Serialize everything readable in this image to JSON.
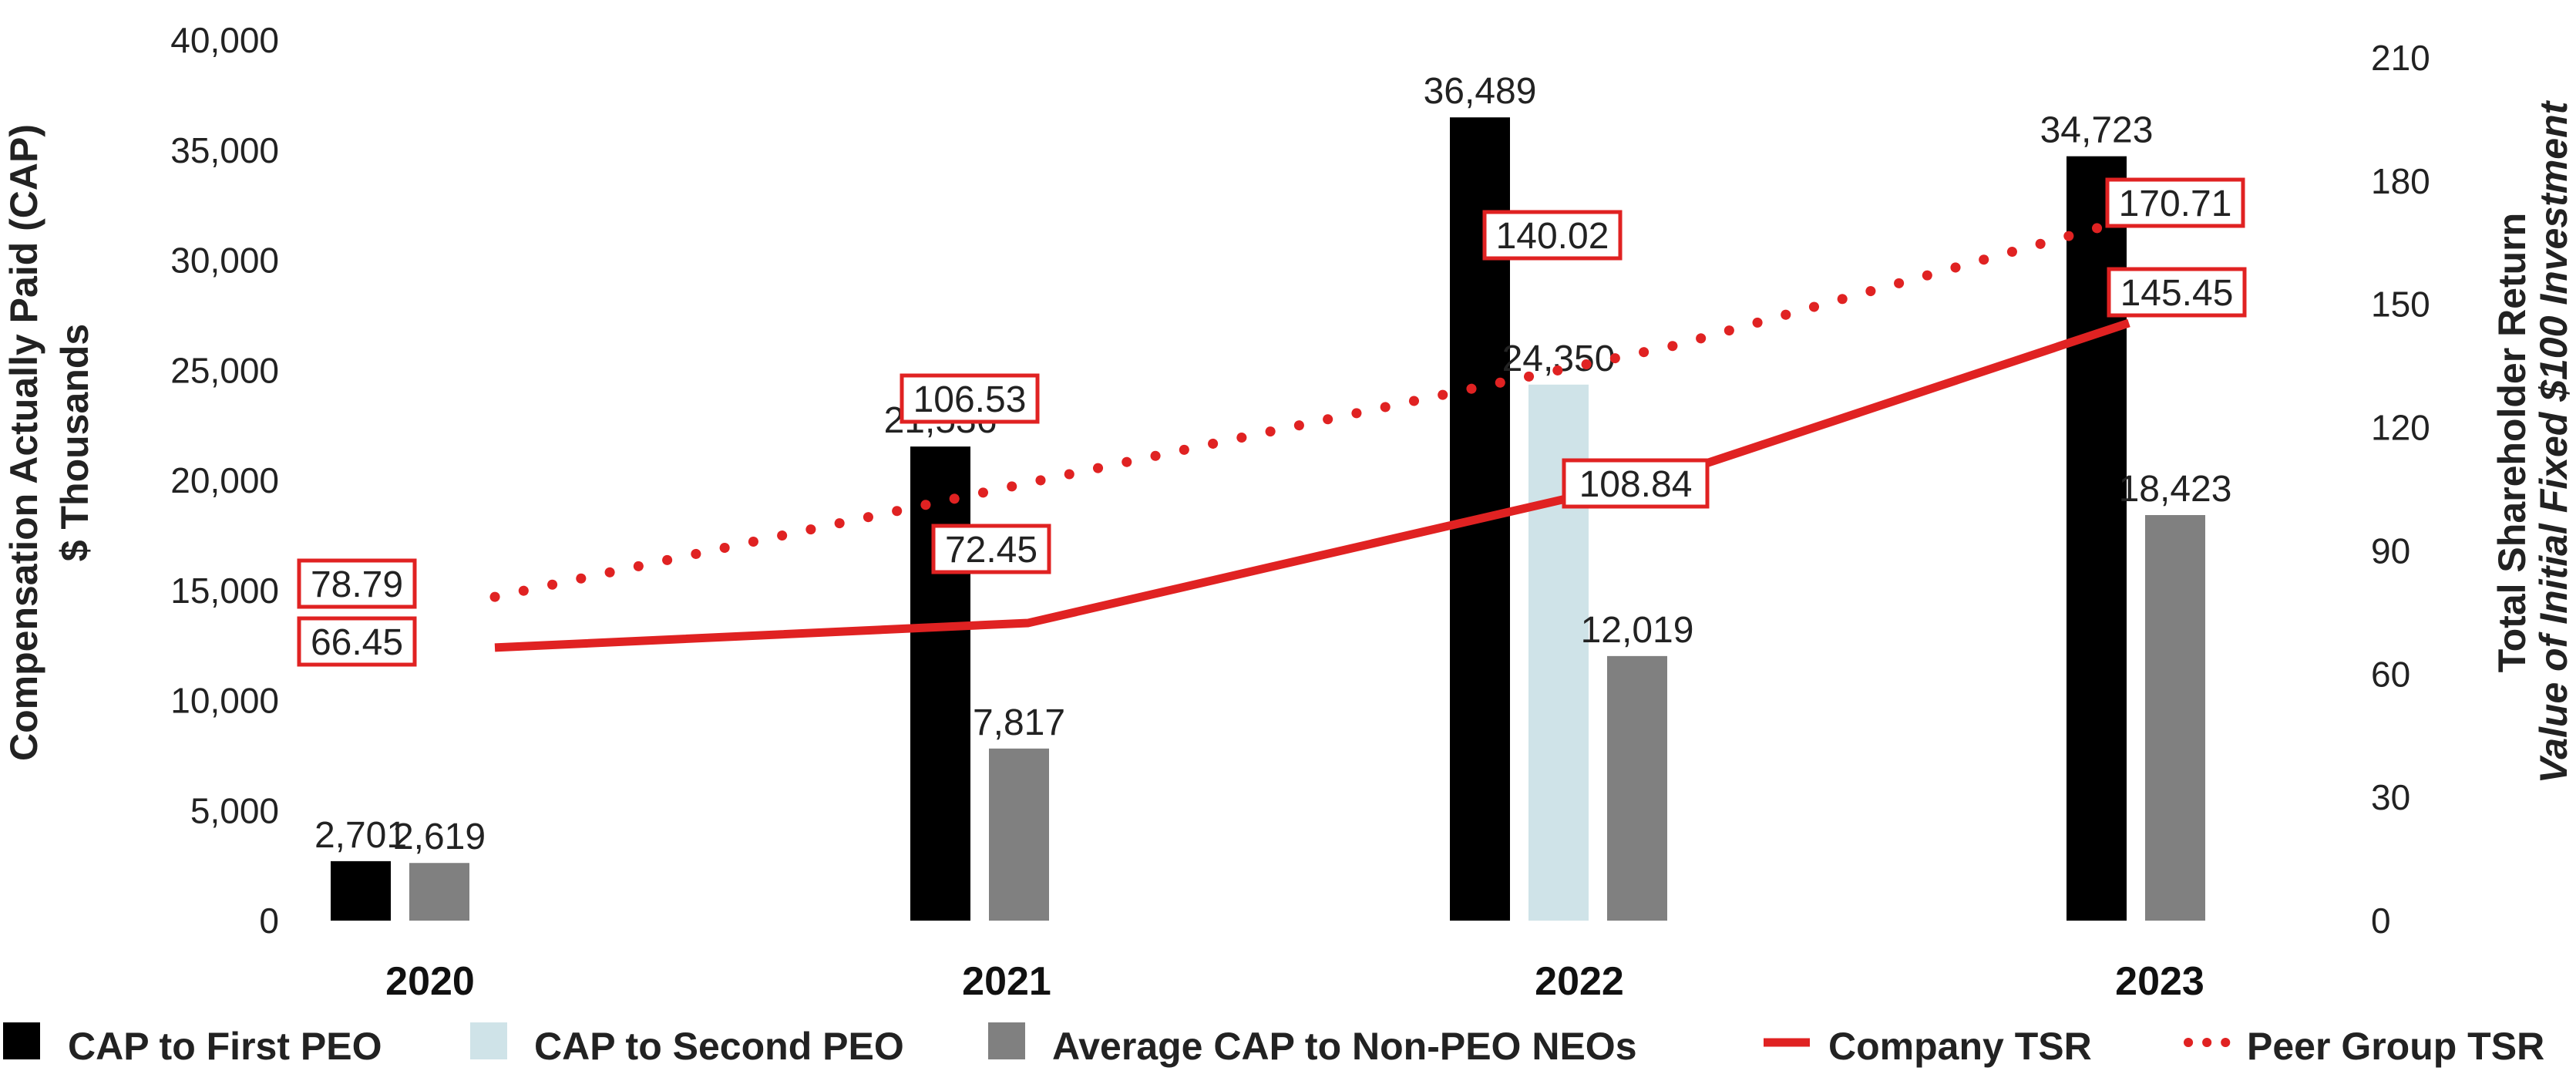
{
  "chart_data": {
    "type": "bar+line",
    "categories": [
      "2020",
      "2021",
      "2022",
      "2023"
    ],
    "left_axis": {
      "title_line1": "Compensation Actually Paid (CAP)",
      "title_line2": "$ Thousands",
      "range": [
        0,
        40000
      ],
      "ticks": [
        0,
        5000,
        10000,
        15000,
        20000,
        25000,
        30000,
        35000,
        40000
      ],
      "tick_labels": [
        "0",
        "5,000",
        "10,000",
        "15,000",
        "20,000",
        "25,000",
        "30,000",
        "35,000",
        "40,000"
      ]
    },
    "right_axis": {
      "title_line1": "Total Shareholder Return",
      "title_line2": "Value of Initial Fixed $100 Investment",
      "range": [
        0,
        210
      ],
      "ticks": [
        0,
        30,
        60,
        90,
        120,
        150,
        180,
        210
      ],
      "tick_labels": [
        "0",
        "30",
        "60",
        "90",
        "120",
        "150",
        "180",
        "210"
      ]
    },
    "bar_series": [
      {
        "name": "CAP to First PEO",
        "color": "#000000",
        "values": [
          2701,
          21536,
          36489,
          34723
        ],
        "labels": [
          "2,701",
          "21,536",
          "36,489",
          "34,723"
        ]
      },
      {
        "name": "CAP to Second PEO",
        "color": "#cfe3e8",
        "values": [
          null,
          null,
          24350,
          null
        ],
        "labels": [
          "",
          "",
          "24,350",
          ""
        ]
      },
      {
        "name": "Average CAP to Non-PEO NEOs",
        "color": "#808080",
        "values": [
          2619,
          7817,
          12019,
          18423
        ],
        "labels": [
          "2,619",
          "7,817",
          "12,019",
          "18,423"
        ]
      }
    ],
    "line_series": [
      {
        "name": "Company TSR",
        "color": "#e02222",
        "style": "solid",
        "values": [
          66.45,
          72.45,
          108.84,
          145.45
        ],
        "labels": [
          "66.45",
          "72.45",
          "108.84",
          "145.45"
        ]
      },
      {
        "name": "Peer Group TSR",
        "color": "#e02222",
        "style": "dotted",
        "values": [
          78.79,
          106.53,
          140.02,
          170.71
        ],
        "labels": [
          "78.79",
          "106.53",
          "140.02",
          "170.71"
        ]
      }
    ],
    "legend": {
      "position": "bottom",
      "items": [
        "CAP to First PEO",
        "CAP to Second PEO",
        "Average CAP to Non-PEO NEOs",
        "Company TSR",
        "Peer Group TSR"
      ]
    }
  }
}
